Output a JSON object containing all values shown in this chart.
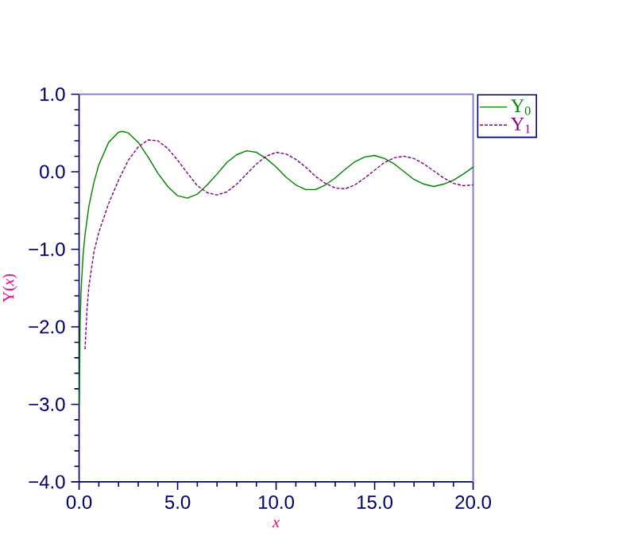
{
  "chart_data": {
    "type": "line",
    "xlabel": "x",
    "ylabel": "Y(*x*)",
    "xlim": [
      0,
      20
    ],
    "ylim": [
      -4,
      1
    ],
    "xticks": [
      {
        "value": 0,
        "label": "0.0"
      },
      {
        "value": 5,
        "label": "5.0"
      },
      {
        "value": 10,
        "label": "10.0"
      },
      {
        "value": 15,
        "label": "15.0"
      },
      {
        "value": 20,
        "label": "20.0"
      }
    ],
    "yticks": [
      {
        "value": -4,
        "label": "−4.0"
      },
      {
        "value": -3,
        "label": "−3.0"
      },
      {
        "value": -2,
        "label": "−2.0"
      },
      {
        "value": -1,
        "label": "−1.0"
      },
      {
        "value": 0,
        "label": "0.0"
      },
      {
        "value": 1,
        "label": "1.0"
      }
    ],
    "legend": "top right",
    "grid": false,
    "series": [
      {
        "name": "Y$_{0}$",
        "color": "#008000",
        "line_style": "solid",
        "x": [
          0.01,
          0.05,
          0.1,
          0.2,
          0.3,
          0.5,
          0.75,
          1,
          1.5,
          2,
          2.2,
          2.5,
          3,
          3.5,
          4,
          4.5,
          5,
          5.5,
          6,
          6.5,
          7,
          7.5,
          8,
          8.5,
          9,
          9.5,
          10,
          10.5,
          11,
          11.5,
          12,
          12.5,
          13,
          13.5,
          14,
          14.5,
          15,
          15.5,
          16,
          16.5,
          17,
          17.5,
          18,
          18.5,
          19,
          19.5,
          20
        ],
        "values": [
          -3.0,
          -1.98,
          -1.53,
          -1.08,
          -0.81,
          -0.44,
          -0.14,
          0.09,
          0.38,
          0.51,
          0.52,
          0.5,
          0.38,
          0.19,
          -0.02,
          -0.19,
          -0.31,
          -0.34,
          -0.29,
          -0.17,
          -0.03,
          0.12,
          0.22,
          0.27,
          0.25,
          0.17,
          0.06,
          -0.07,
          -0.17,
          -0.23,
          -0.23,
          -0.17,
          -0.08,
          0.03,
          0.13,
          0.19,
          0.21,
          0.17,
          0.1,
          0.0,
          -0.1,
          -0.16,
          -0.19,
          -0.16,
          -0.11,
          -0.03,
          0.06
        ]
      },
      {
        "name": "Y$_{1}$",
        "color": "#800080",
        "line_style": "dashed",
        "x": [
          0.3,
          0.4,
          0.5,
          0.75,
          1,
          1.5,
          2,
          2.5,
          3,
          3.5,
          4,
          4.5,
          5,
          5.5,
          6,
          6.5,
          7,
          7.5,
          8,
          8.5,
          9,
          9.5,
          10,
          10.5,
          11,
          11.5,
          12,
          12.5,
          13,
          13.5,
          14,
          14.5,
          15,
          15.5,
          16,
          16.5,
          17,
          17.5,
          18,
          18.5,
          19,
          19.5,
          20
        ],
        "values": [
          -2.29,
          -1.78,
          -1.47,
          -1.04,
          -0.78,
          -0.41,
          -0.11,
          0.15,
          0.32,
          0.41,
          0.4,
          0.3,
          0.15,
          -0.02,
          -0.18,
          -0.27,
          -0.3,
          -0.26,
          -0.16,
          -0.03,
          0.1,
          0.2,
          0.25,
          0.23,
          0.16,
          0.06,
          -0.06,
          -0.15,
          -0.21,
          -0.22,
          -0.17,
          -0.08,
          0.02,
          0.12,
          0.18,
          0.2,
          0.17,
          0.1,
          0.01,
          -0.08,
          -0.15,
          -0.18,
          -0.17
        ]
      }
    ]
  }
}
